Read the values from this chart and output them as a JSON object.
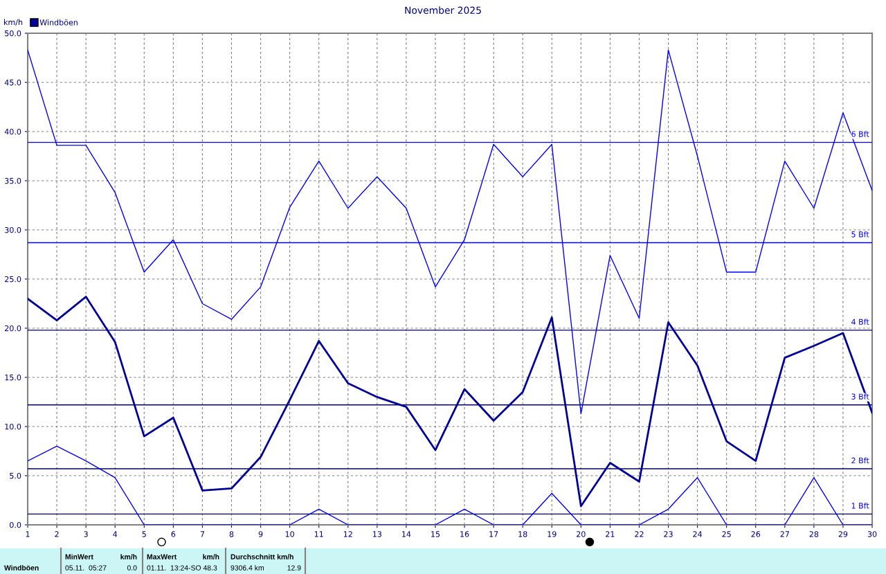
{
  "chart_data": {
    "type": "line",
    "title": "November 2025",
    "ylabel": "km/h",
    "x": [
      1,
      2,
      3,
      4,
      5,
      6,
      7,
      8,
      9,
      10,
      11,
      12,
      13,
      14,
      15,
      16,
      17,
      18,
      19,
      20,
      21,
      22,
      23,
      24,
      25,
      26,
      27,
      28,
      29,
      30
    ],
    "series": [
      {
        "color": "#0000ff",
        "values": [
          48.3,
          38.6,
          38.6,
          33.8,
          25.7,
          29.0,
          22.5,
          20.9,
          24.2,
          32.3,
          37.0,
          32.2,
          35.4,
          32.2,
          24.2,
          29.0,
          38.7,
          35.4,
          38.7,
          11.3,
          27.4,
          21.0,
          48.3,
          37.5,
          25.7,
          25.7,
          37.0,
          32.2,
          41.9,
          34.0
        ]
      },
      {
        "name": "Windböen",
        "color": "#000099",
        "values": [
          23.0,
          20.8,
          23.2,
          18.6,
          9.0,
          10.9,
          3.5,
          3.7,
          6.9,
          12.7,
          18.7,
          14.4,
          13.0,
          12.0,
          7.6,
          13.8,
          10.6,
          13.5,
          21.1,
          1.9,
          6.3,
          4.4,
          20.6,
          16.2,
          8.5,
          6.5,
          17.0,
          18.2,
          19.5,
          11.4
        ]
      },
      {
        "color": "#0000ff",
        "values": [
          6.5,
          8.0,
          6.5,
          4.8,
          0,
          0,
          0,
          0,
          0,
          0,
          1.6,
          0,
          0,
          0,
          0,
          1.6,
          0,
          0,
          3.2,
          0,
          0,
          0,
          1.6,
          4.8,
          0,
          0,
          0,
          4.8,
          0,
          0
        ]
      }
    ],
    "xlim": [
      1,
      30
    ],
    "xticks": [
      1,
      2,
      3,
      4,
      5,
      6,
      7,
      8,
      9,
      10,
      11,
      12,
      13,
      14,
      15,
      16,
      17,
      18,
      19,
      20,
      21,
      22,
      23,
      24,
      25,
      26,
      27,
      28,
      29,
      30
    ],
    "ylim": [
      0,
      50
    ],
    "yticks": [
      {
        "value": 0,
        "label": "0.0"
      },
      {
        "value": 5,
        "label": "5.0"
      },
      {
        "value": 10,
        "label": "10.0"
      },
      {
        "value": 15,
        "label": "15.0"
      },
      {
        "value": 20,
        "label": "20.0"
      },
      {
        "value": 25,
        "label": "25.0"
      },
      {
        "value": 30,
        "label": "30.0"
      },
      {
        "value": 35,
        "label": "35.0"
      },
      {
        "value": 40,
        "label": "40.0"
      },
      {
        "value": 45,
        "label": "45.0"
      },
      {
        "value": 50,
        "label": "50.0"
      }
    ],
    "ref_lines": [
      {
        "axis": "y",
        "value": 38.9,
        "label": "6 Bft",
        "color": "#0000ff"
      },
      {
        "axis": "y",
        "value": 28.7,
        "label": "5 Bft",
        "color": "#0000ff"
      },
      {
        "axis": "y",
        "value": 19.8,
        "label": "4 Bft",
        "color": "#000066"
      },
      {
        "axis": "y",
        "value": 12.2,
        "label": "3 Bft",
        "color": "#000066"
      },
      {
        "axis": "y",
        "value": 5.7,
        "label": "2 Bft",
        "color": "#000066"
      },
      {
        "axis": "y",
        "value": 1.1,
        "label": "1 Bft",
        "color": "#000066"
      }
    ],
    "annotations": [
      "Windböen",
      "MinWert",
      "km/h",
      "05.11.  05:27",
      "0.0",
      "MaxWert",
      "km/h",
      "01.11.  13:24-SO 48.3",
      "Durchschnitt km/h",
      "9306.4 km",
      "12.9"
    ],
    "grid": true,
    "legend": "top left",
    "line_style": "solid",
    "marker": "none"
  }
}
